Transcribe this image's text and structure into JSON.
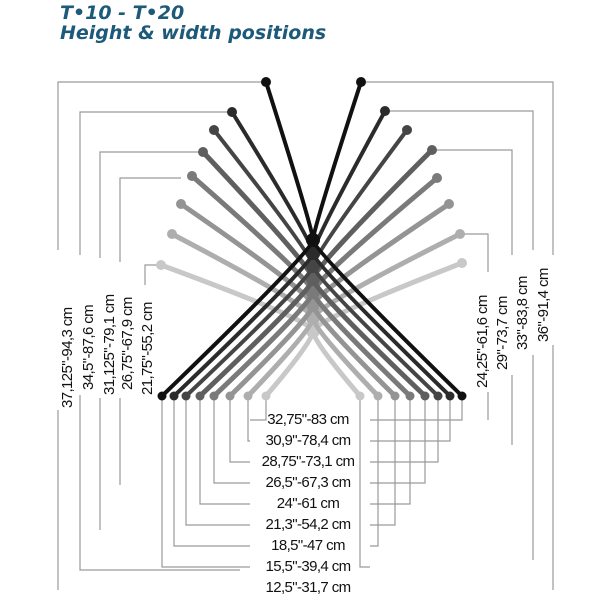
{
  "title": "T•10 - T•20",
  "subtitle": "Height & width positions",
  "left_heights": [
    "37,125\"-94,3 cm",
    "34,5\"-87,6 cm",
    "31,125\"-79,1 cm",
    "26,75\"-67,9 cm",
    "21,75\"-55,2 cm"
  ],
  "right_heights": [
    "24,25\"-61,6 cm",
    "29\"-73,7 cm",
    "33\"-83,8 cm",
    "36\"-91,4 cm"
  ],
  "widths": [
    "32,75\"-83 cm",
    "30,9\"-78,4 cm",
    "28,75\"-73,1 cm",
    "26,5\"-67,3 cm",
    "24\"-61 cm",
    "21,3\"-54,2 cm",
    "18,5\"-47 cm",
    "15,5\"-39,4 cm",
    "12,5\"-31,7 cm"
  ],
  "colors": {
    "title": "#1d5a7a",
    "rod_dark": "#111111",
    "rod_light": "#c8c8c8",
    "dimension_line": "#9a9a9a"
  }
}
